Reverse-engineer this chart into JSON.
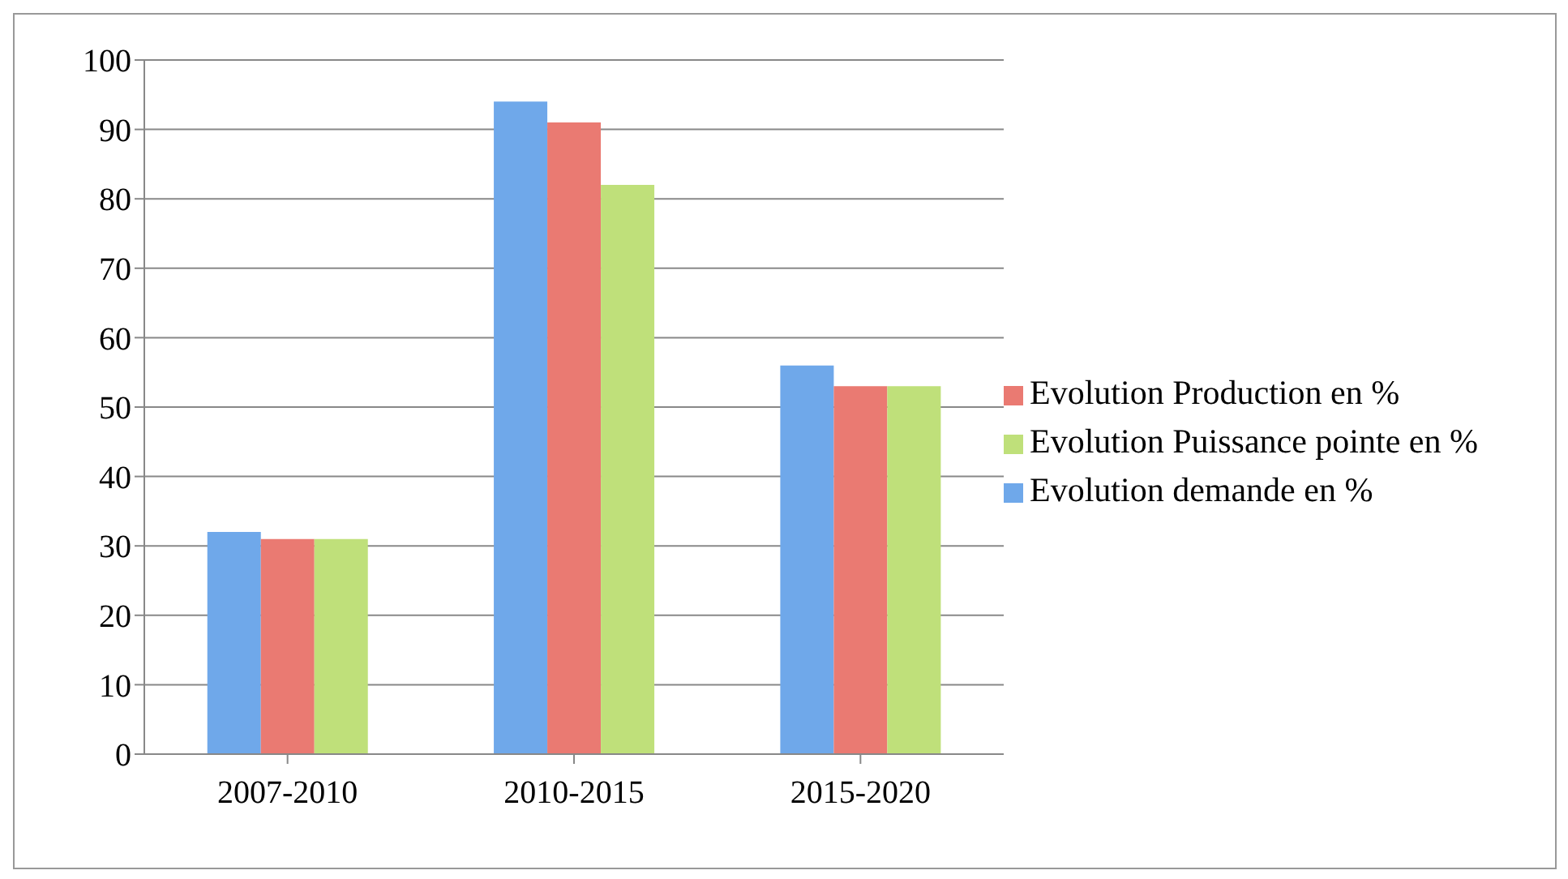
{
  "chart_data": {
    "type": "bar",
    "categories": [
      "2007-2010",
      "2010-2015",
      "2015-2020"
    ],
    "series": [
      {
        "name": "Evolution demande en %",
        "color": "#6fa8ea",
        "values": [
          32,
          94,
          56
        ]
      },
      {
        "name": "Evolution Production en %",
        "color": "#ea7a72",
        "values": [
          31,
          91,
          53
        ]
      },
      {
        "name": "Evolution Puissance pointe en %",
        "color": "#bfe07a",
        "values": [
          31,
          82,
          53
        ]
      }
    ],
    "ylim": [
      0,
      100
    ],
    "yticks": [
      0,
      10,
      20,
      30,
      40,
      50,
      60,
      70,
      80,
      90,
      100
    ],
    "grid": "y",
    "legend": "right"
  }
}
